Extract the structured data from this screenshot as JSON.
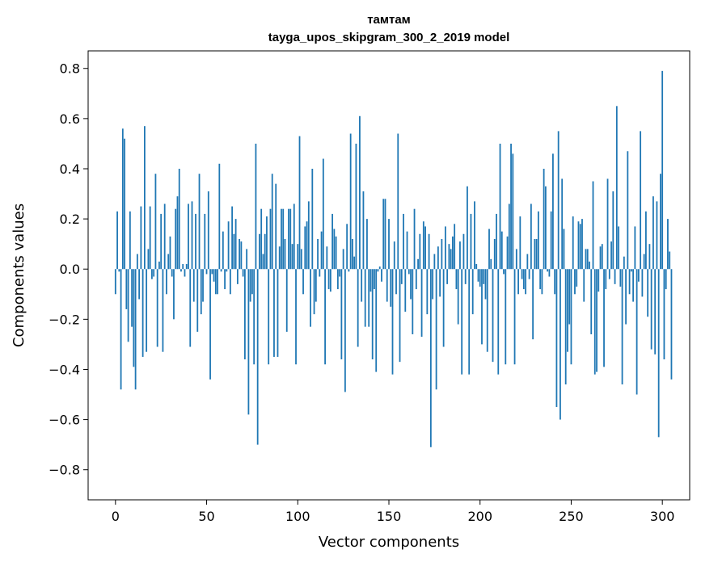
{
  "chart_data": {
    "type": "bar",
    "title": "тамтам",
    "subtitle": "tayga_upos_skipgram_300_2_2019 model",
    "xlabel": "Vector components",
    "ylabel": "Components values",
    "xlim": [
      -15,
      315
    ],
    "ylim": [
      -0.92,
      0.87
    ],
    "xticks": [
      0,
      50,
      100,
      150,
      200,
      250,
      300
    ],
    "yticks": [
      -0.8,
      -0.6,
      -0.4,
      -0.2,
      0.0,
      0.2,
      0.4,
      0.6,
      0.8
    ],
    "ytick_labels": [
      "−0.8",
      "−0.6",
      "−0.4",
      "−0.2",
      "0.0",
      "0.2",
      "0.4",
      "0.6",
      "0.8"
    ],
    "grid": false,
    "bar_color": "#1f77b4",
    "values": [
      -0.1,
      0.23,
      -0.01,
      -0.48,
      0.56,
      0.52,
      -0.16,
      -0.29,
      0.23,
      -0.23,
      -0.39,
      -0.48,
      0.06,
      -0.12,
      0.25,
      -0.35,
      0.57,
      -0.33,
      0.08,
      0.25,
      -0.04,
      -0.03,
      0.38,
      -0.31,
      0.03,
      0.22,
      -0.33,
      0.26,
      -0.1,
      0.06,
      0.13,
      -0.03,
      -0.2,
      0.24,
      0.29,
      0.4,
      -0.01,
      0.02,
      -0.03,
      0.02,
      0.26,
      -0.31,
      0.27,
      -0.13,
      0.22,
      -0.25,
      0.38,
      -0.18,
      -0.13,
      0.22,
      -0.02,
      0.31,
      -0.44,
      -0.02,
      -0.05,
      -0.1,
      -0.1,
      0.42,
      -0.01,
      0.15,
      -0.08,
      -0.01,
      0.19,
      -0.1,
      0.25,
      0.14,
      0.2,
      -0.06,
      0.12,
      0.11,
      -0.03,
      -0.36,
      0.08,
      -0.58,
      -0.13,
      -0.1,
      -0.38,
      0.5,
      -0.7,
      0.14,
      0.24,
      0.06,
      0.14,
      0.21,
      -0.38,
      0.24,
      0.38,
      -0.35,
      0.34,
      -0.35,
      0.09,
      0.24,
      0.24,
      0.12,
      -0.25,
      0.24,
      0.24,
      0.1,
      0.26,
      -0.38,
      0.1,
      0.53,
      0.08,
      -0.1,
      0.17,
      0.19,
      0.27,
      -0.23,
      0.4,
      -0.18,
      -0.13,
      0.12,
      -0.03,
      0.15,
      0.44,
      -0.38,
      0.09,
      -0.08,
      -0.09,
      0.22,
      0.16,
      0.13,
      -0.08,
      -0.03,
      -0.36,
      0.08,
      -0.49,
      0.18,
      -0.01,
      0.54,
      0.12,
      0.05,
      0.5,
      -0.31,
      0.61,
      -0.13,
      0.31,
      -0.23,
      0.2,
      -0.23,
      -0.09,
      -0.36,
      -0.08,
      -0.41,
      -0.01,
      0.01,
      -0.05,
      0.28,
      0.28,
      -0.13,
      0.2,
      -0.15,
      -0.42,
      0.11,
      -0.1,
      0.54,
      -0.37,
      -0.06,
      0.22,
      -0.17,
      0.15,
      -0.02,
      -0.12,
      -0.26,
      0.24,
      -0.08,
      0.04,
      0.14,
      -0.27,
      0.19,
      0.17,
      -0.18,
      0.14,
      -0.71,
      -0.12,
      0.06,
      -0.48,
      0.09,
      -0.11,
      0.12,
      -0.31,
      0.17,
      -0.06,
      0.1,
      0.08,
      0.13,
      0.18,
      -0.08,
      -0.22,
      0.11,
      -0.42,
      0.14,
      -0.06,
      0.33,
      -0.42,
      0.22,
      -0.18,
      0.27,
      0.02,
      -0.05,
      -0.07,
      -0.3,
      -0.06,
      -0.12,
      -0.33,
      0.16,
      0.04,
      -0.37,
      0.12,
      0.22,
      -0.42,
      0.5,
      0.15,
      -0.02,
      -0.38,
      0.13,
      0.26,
      0.5,
      0.46,
      -0.38,
      0.08,
      -0.1,
      0.21,
      -0.04,
      -0.08,
      -0.1,
      0.06,
      -0.04,
      0.26,
      -0.28,
      0.12,
      0.12,
      0.23,
      -0.08,
      -0.1,
      0.4,
      0.33,
      -0.01,
      -0.03,
      0.23,
      0.46,
      -0.1,
      -0.55,
      0.55,
      -0.6,
      0.36,
      0.16,
      -0.46,
      -0.33,
      -0.22,
      -0.38,
      0.21,
      -0.1,
      -0.07,
      0.19,
      0.18,
      0.2,
      -0.13,
      0.08,
      0.08,
      0.03,
      -0.26,
      0.35,
      -0.42,
      -0.41,
      -0.09,
      0.09,
      0.1,
      -0.39,
      -0.08,
      0.36,
      -0.04,
      0.11,
      0.31,
      -0.06,
      0.65,
      0.17,
      -0.07,
      -0.46,
      0.05,
      -0.22,
      0.47,
      -0.1,
      -0.01,
      -0.13,
      0.17,
      -0.5,
      -0.05,
      0.55,
      -0.11,
      0.06,
      0.23,
      -0.19,
      0.1,
      -0.32,
      0.29,
      -0.34,
      0.27,
      -0.67,
      0.38,
      0.79,
      -0.36,
      -0.08,
      0.2,
      0.07,
      -0.44
    ]
  }
}
